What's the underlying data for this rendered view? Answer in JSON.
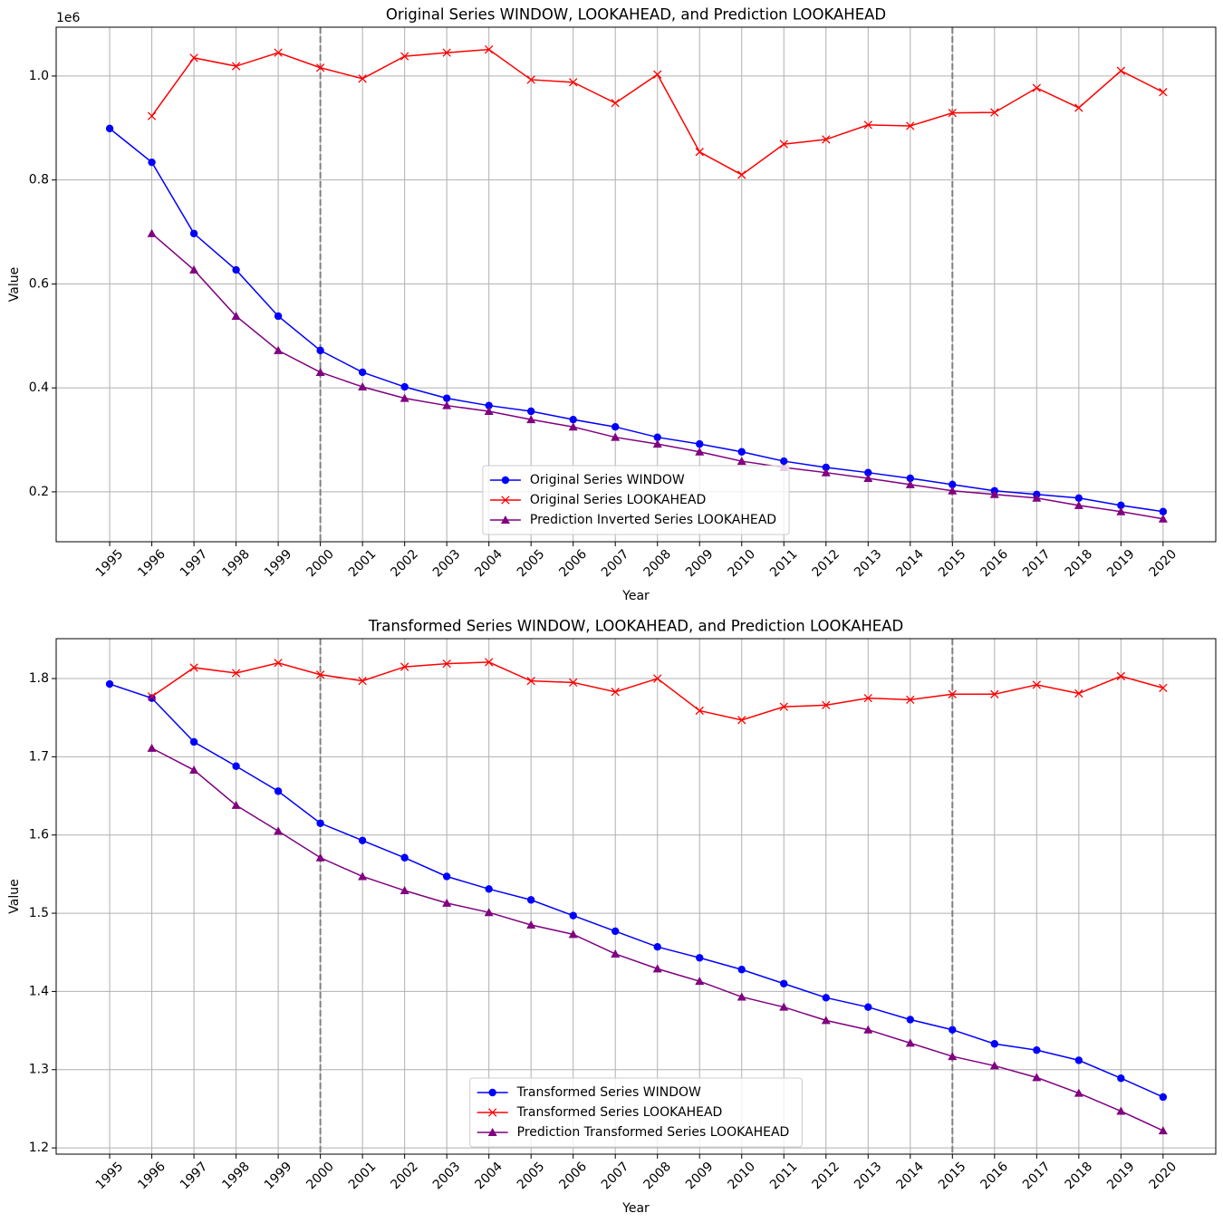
{
  "chart_data": [
    {
      "type": "line",
      "title": "Original Series WINDOW, LOOKAHEAD, and Prediction LOOKAHEAD",
      "xlabel": "Year",
      "ylabel": "Value",
      "offset_label": "1e6",
      "x": [
        1995,
        1996,
        1997,
        1998,
        1999,
        2000,
        2001,
        2002,
        2003,
        2004,
        2005,
        2006,
        2007,
        2008,
        2009,
        2010,
        2011,
        2012,
        2013,
        2014,
        2015,
        2016,
        2017,
        2018,
        2019,
        2020
      ],
      "xlim": [
        1993.73,
        2021.25
      ],
      "xticks": [
        1995,
        1996,
        1997,
        1998,
        1999,
        2000,
        2001,
        2002,
        2003,
        2004,
        2005,
        2006,
        2007,
        2008,
        2009,
        2010,
        2011,
        2012,
        2013,
        2014,
        2015,
        2016,
        2017,
        2018,
        2019,
        2020
      ],
      "ylim": [
        0.104,
        1.094
      ],
      "yticks": [
        0.2,
        0.4,
        0.6,
        0.8,
        {
          "value": 1,
          "label": "1.0"
        }
      ],
      "grid": true,
      "legend": "lower center",
      "vlines": [
        2000,
        2015
      ],
      "series": [
        {
          "name": "Original Series WINDOW",
          "color": "#0000ff",
          "marker": "circle",
          "values": [
            0.899,
            0.834,
            0.697,
            0.627,
            0.538,
            0.472,
            0.43,
            0.402,
            0.38,
            0.366,
            0.355,
            0.339,
            0.325,
            0.305,
            0.292,
            0.277,
            0.259,
            0.247,
            0.237,
            0.226,
            0.214,
            0.202,
            0.195,
            0.188,
            0.174,
            0.162
          ]
        },
        {
          "name": "Original Series LOOKAHEAD",
          "color": "#ff0000",
          "marker": "x",
          "values": [
            null,
            0.923,
            1.035,
            1.019,
            1.045,
            1.016,
            0.995,
            1.038,
            1.045,
            1.051,
            0.993,
            0.988,
            0.948,
            1.003,
            0.854,
            0.81,
            0.869,
            0.878,
            0.906,
            0.904,
            0.929,
            0.93,
            0.977,
            0.939,
            1.01,
            0.969
          ]
        },
        {
          "name": "Prediction Inverted Series LOOKAHEAD",
          "color": "#800080",
          "marker": "triangle",
          "values": [
            null,
            0.697,
            0.627,
            0.538,
            0.472,
            0.43,
            0.402,
            0.38,
            0.366,
            0.355,
            0.339,
            0.325,
            0.305,
            0.292,
            0.277,
            0.259,
            0.247,
            0.237,
            0.226,
            0.214,
            0.202,
            0.195,
            0.188,
            0.174,
            0.162,
            0.148
          ]
        }
      ]
    },
    {
      "type": "line",
      "title": "Transformed Series WINDOW, LOOKAHEAD, and Prediction LOOKAHEAD",
      "xlabel": "Year",
      "ylabel": "Value",
      "x": [
        1995,
        1996,
        1997,
        1998,
        1999,
        2000,
        2001,
        2002,
        2003,
        2004,
        2005,
        2006,
        2007,
        2008,
        2009,
        2010,
        2011,
        2012,
        2013,
        2014,
        2015,
        2016,
        2017,
        2018,
        2019,
        2020
      ],
      "xlim": [
        1993.73,
        2021.25
      ],
      "xticks": [
        1995,
        1996,
        1997,
        1998,
        1999,
        2000,
        2001,
        2002,
        2003,
        2004,
        2005,
        2006,
        2007,
        2008,
        2009,
        2010,
        2011,
        2012,
        2013,
        2014,
        2015,
        2016,
        2017,
        2018,
        2019,
        2020
      ],
      "ylim": [
        1.192,
        1.851
      ],
      "yticks": [
        1.2,
        1.3,
        1.4,
        1.5,
        1.6,
        1.7,
        1.8
      ],
      "grid": true,
      "legend": "lower center",
      "vlines": [
        2000,
        2015
      ],
      "series": [
        {
          "name": "Transformed Series WINDOW",
          "color": "#0000ff",
          "marker": "circle",
          "values": [
            1.793,
            1.775,
            1.719,
            1.688,
            1.656,
            1.615,
            1.593,
            1.571,
            1.547,
            1.531,
            1.517,
            1.497,
            1.477,
            1.457,
            1.443,
            1.428,
            1.41,
            1.392,
            1.38,
            1.364,
            1.351,
            1.333,
            1.325,
            1.312,
            1.289,
            1.265
          ]
        },
        {
          "name": "Transformed Series LOOKAHEAD",
          "color": "#ff0000",
          "marker": "x",
          "values": [
            null,
            1.777,
            1.814,
            1.807,
            1.82,
            1.805,
            1.797,
            1.815,
            1.819,
            1.821,
            1.797,
            1.795,
            1.783,
            1.8,
            1.759,
            1.747,
            1.764,
            1.766,
            1.775,
            1.773,
            1.78,
            1.78,
            1.792,
            1.781,
            1.803,
            1.788
          ]
        },
        {
          "name": "Prediction Transformed Series LOOKAHEAD",
          "color": "#800080",
          "marker": "triangle",
          "values": [
            null,
            1.711,
            1.683,
            1.638,
            1.605,
            1.571,
            1.547,
            1.529,
            1.513,
            1.501,
            1.485,
            1.473,
            1.448,
            1.429,
            1.413,
            1.393,
            1.38,
            1.363,
            1.351,
            1.334,
            1.317,
            1.305,
            1.29,
            1.27,
            1.247,
            1.222
          ]
        }
      ]
    }
  ]
}
